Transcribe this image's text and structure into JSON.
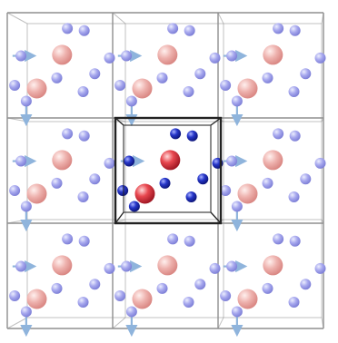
{
  "figure": {
    "kind": "periodic-boundary-conditions-3x3",
    "central_cell": {
      "row": 1,
      "col": 1
    },
    "colors": {
      "background": "#ffffff",
      "grid_line": "#8f8f8f",
      "central_outline": "#222222",
      "arrow": "#8fb4dc",
      "large_red": "#e02f3b",
      "large_red_faded": "#e9a3a3",
      "small_blue": "#1c2bb8",
      "small_blue_faded": "#9b9be8"
    },
    "particles": {
      "large": [
        [
          0.52,
          0.4
        ],
        [
          0.28,
          0.72
        ]
      ],
      "small": [
        [
          0.57,
          0.15
        ],
        [
          0.73,
          0.17
        ],
        [
          0.13,
          0.41
        ],
        [
          0.97,
          0.43
        ],
        [
          0.83,
          0.58
        ],
        [
          0.47,
          0.62
        ],
        [
          0.07,
          0.69
        ],
        [
          0.72,
          0.75
        ],
        [
          0.18,
          0.84
        ]
      ],
      "arrow_horizontal": {
        "at": [
          0.05,
          0.41
        ],
        "to": [
          0.25,
          0.41
        ]
      },
      "arrow_vertical": {
        "at": [
          0.18,
          0.84
        ],
        "to": [
          0.18,
          1.05
        ]
      }
    }
  }
}
